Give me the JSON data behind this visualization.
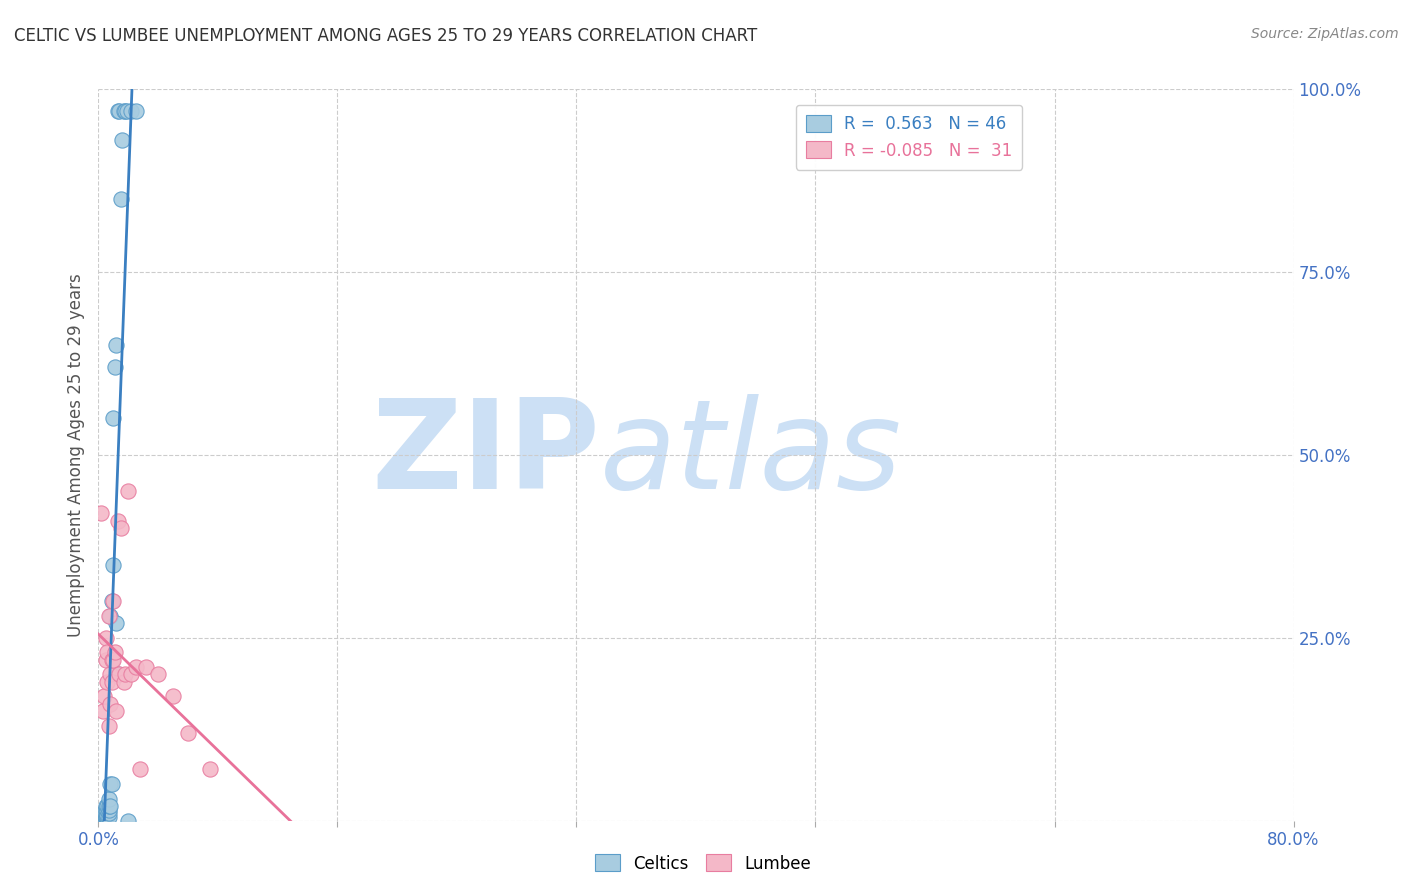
{
  "title": "CELTIC VS LUMBEE UNEMPLOYMENT AMONG AGES 25 TO 29 YEARS CORRELATION CHART",
  "source": "Source: ZipAtlas.com",
  "ylabel": "Unemployment Among Ages 25 to 29 years",
  "xlim": [
    0.0,
    0.8
  ],
  "ylim": [
    0.0,
    1.0
  ],
  "celtic_R": 0.563,
  "celtic_N": 46,
  "lumbee_R": -0.085,
  "lumbee_N": 31,
  "celtic_color": "#a8cce0",
  "lumbee_color": "#f4b8c8",
  "celtic_edge_color": "#5b9dc9",
  "lumbee_edge_color": "#e87da0",
  "celtic_line_color": "#3a7fc1",
  "lumbee_line_color": "#e8729a",
  "watermark_zip": "ZIP",
  "watermark_atlas": "atlas",
  "watermark_color": "#cce0f5",
  "celtic_x": [
    0.0,
    0.002,
    0.002,
    0.003,
    0.003,
    0.003,
    0.004,
    0.004,
    0.004,
    0.004,
    0.005,
    0.005,
    0.005,
    0.005,
    0.005,
    0.005,
    0.006,
    0.006,
    0.006,
    0.006,
    0.007,
    0.007,
    0.007,
    0.007,
    0.007,
    0.008,
    0.008,
    0.008,
    0.009,
    0.009,
    0.01,
    0.01,
    0.011,
    0.012,
    0.012,
    0.013,
    0.013,
    0.014,
    0.015,
    0.016,
    0.017,
    0.018,
    0.019,
    0.02,
    0.022,
    0.025
  ],
  "celtic_y": [
    0.005,
    0.0,
    0.003,
    0.005,
    0.006,
    0.008,
    0.003,
    0.005,
    0.008,
    0.012,
    0.003,
    0.005,
    0.007,
    0.01,
    0.015,
    0.02,
    0.005,
    0.008,
    0.015,
    0.02,
    0.005,
    0.01,
    0.015,
    0.02,
    0.03,
    0.02,
    0.05,
    0.28,
    0.05,
    0.3,
    0.35,
    0.55,
    0.62,
    0.27,
    0.65,
    0.2,
    0.97,
    0.97,
    0.85,
    0.93,
    0.97,
    0.97,
    0.97,
    0.0,
    0.97,
    0.97
  ],
  "lumbee_x": [
    0.002,
    0.003,
    0.004,
    0.005,
    0.005,
    0.006,
    0.006,
    0.007,
    0.007,
    0.008,
    0.008,
    0.009,
    0.009,
    0.01,
    0.01,
    0.011,
    0.012,
    0.013,
    0.014,
    0.015,
    0.017,
    0.018,
    0.02,
    0.022,
    0.025,
    0.028,
    0.032,
    0.04,
    0.05,
    0.06,
    0.075
  ],
  "lumbee_y": [
    0.42,
    0.15,
    0.17,
    0.22,
    0.25,
    0.19,
    0.23,
    0.28,
    0.13,
    0.2,
    0.16,
    0.19,
    0.22,
    0.22,
    0.3,
    0.23,
    0.15,
    0.41,
    0.2,
    0.4,
    0.19,
    0.2,
    0.45,
    0.2,
    0.21,
    0.07,
    0.21,
    0.2,
    0.17,
    0.12,
    0.07
  ]
}
